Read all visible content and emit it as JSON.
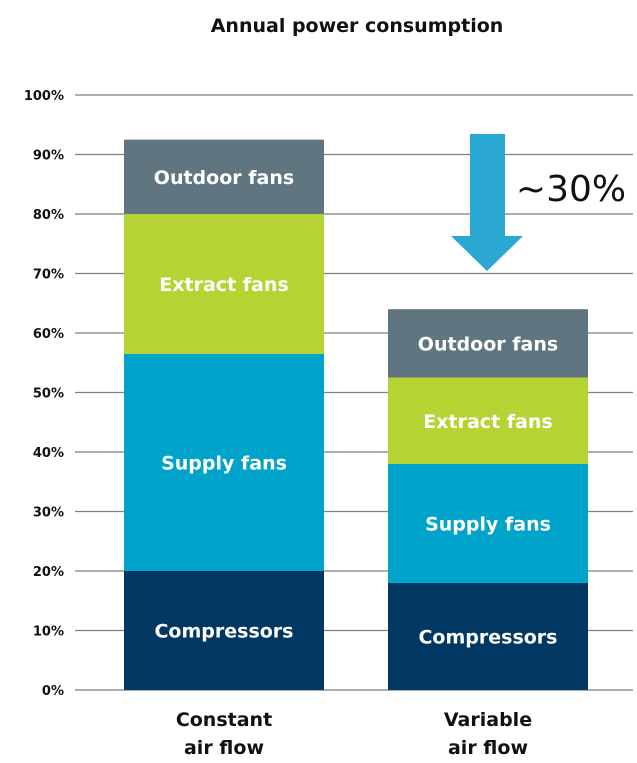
{
  "chart_data": {
    "type": "bar",
    "stacked": true,
    "title": "Annual power consumption",
    "xlabel": "",
    "ylabel": "",
    "ylim": [
      0,
      100
    ],
    "y_ticks": [
      "0%",
      "10%",
      "20%",
      "30%",
      "40%",
      "50%",
      "60%",
      "70%",
      "80%",
      "90%",
      "100%"
    ],
    "y_tick_values": [
      0,
      10,
      20,
      30,
      40,
      50,
      60,
      70,
      80,
      90,
      100
    ],
    "grid": true,
    "categories": [
      [
        "Constant",
        "air flow"
      ],
      [
        "Variable",
        "air flow"
      ]
    ],
    "series": [
      {
        "name": "Compressors",
        "values": [
          20,
          18
        ],
        "color": "#003863"
      },
      {
        "name": "Supply fans",
        "values": [
          36.5,
          20
        ],
        "color": "#00A3C9"
      },
      {
        "name": "Extract fans",
        "values": [
          23.5,
          14.5
        ],
        "color": "#B6D334"
      },
      {
        "name": "Outdoor fans",
        "values": [
          12.5,
          11.5
        ],
        "color": "#5F7580"
      }
    ],
    "annotation": {
      "text": "~30%",
      "arrow_color": "#2AA8D2"
    }
  }
}
